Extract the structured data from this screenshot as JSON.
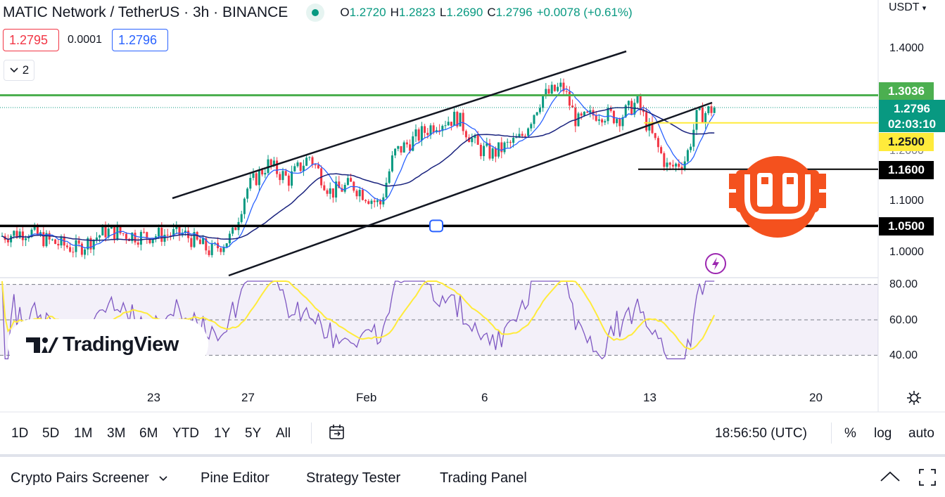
{
  "header": {
    "symbol": "MATIC Network / TetherUS · 3h · BINANCE",
    "open_label": "O",
    "open": "1.2720",
    "high_label": "H",
    "high": "1.2823",
    "low_label": "L",
    "low": "1.2690",
    "close_label": "C",
    "close": "1.2796",
    "change": "+0.0078 (+0.61%)",
    "status_color": "#089981"
  },
  "trade": {
    "sell_price": "1.2795",
    "spread": "0.0001",
    "buy_price": "1.2796",
    "sell_color": "#f23645",
    "buy_color": "#2962ff"
  },
  "indicators_toggle": {
    "count": "2",
    "icon": "chevron-down-icon"
  },
  "price_axis": {
    "currency": "USDT",
    "ticks": [
      "1.4000",
      "1.2000",
      "1.1000",
      "1.0000"
    ],
    "levels": [
      {
        "label": "1.3036",
        "color": "#4caf50",
        "value": 1.3036
      },
      {
        "label": "1.2500",
        "color": "#ffeb3b",
        "value": 1.25
      },
      {
        "label": "1.1600",
        "color": "#000000",
        "value": 1.16
      },
      {
        "label": "1.0500",
        "color": "#000000",
        "value": 1.05
      }
    ],
    "current_price": "1.2796",
    "countdown": "02:03:10"
  },
  "rsi_axis": {
    "ticks": [
      "80.00",
      "60.00",
      "40.00"
    ]
  },
  "time_axis": {
    "labels": [
      "23",
      "27",
      "Feb",
      "6",
      "13",
      "20"
    ]
  },
  "chart_data": {
    "type": "candlestick",
    "series": [
      {
        "name": "",
        "role": "price",
        "start": 1.03,
        "end": 1.2796,
        "high": 1.3436,
        "low": 0.98
      },
      {
        "name": "",
        "role": "ma-fast",
        "color": "#2962ff"
      },
      {
        "name": "",
        "role": "ma-slow",
        "color": "#1a237e"
      },
      {
        "name": "",
        "role": "rsi",
        "color": "#7e57c2",
        "range": [
          20,
          80
        ]
      },
      {
        "name": "",
        "role": "rsi-ma",
        "color": "#ffeb3b"
      }
    ],
    "ylim": [
      0.98,
      1.45
    ],
    "rsi_band": [
      30,
      70
    ],
    "horizontal_lines": [
      1.3036,
      1.25,
      1.16,
      1.05
    ],
    "trend_channel": "ascending",
    "up_color": "#089981",
    "down_color": "#f23645"
  },
  "tv_logo": {
    "text": "TradingView"
  },
  "range_bar": {
    "ranges": [
      "1D",
      "5D",
      "1M",
      "3M",
      "6M",
      "YTD",
      "1Y",
      "5Y",
      "All"
    ],
    "clock": "18:56:50 (UTC)",
    "percent": "%",
    "log": "log",
    "auto": "auto"
  },
  "bottom_panel": {
    "tabs": [
      "Crypto Pairs Screener",
      "Pine Editor",
      "Strategy Tester",
      "Trading Panel"
    ]
  }
}
